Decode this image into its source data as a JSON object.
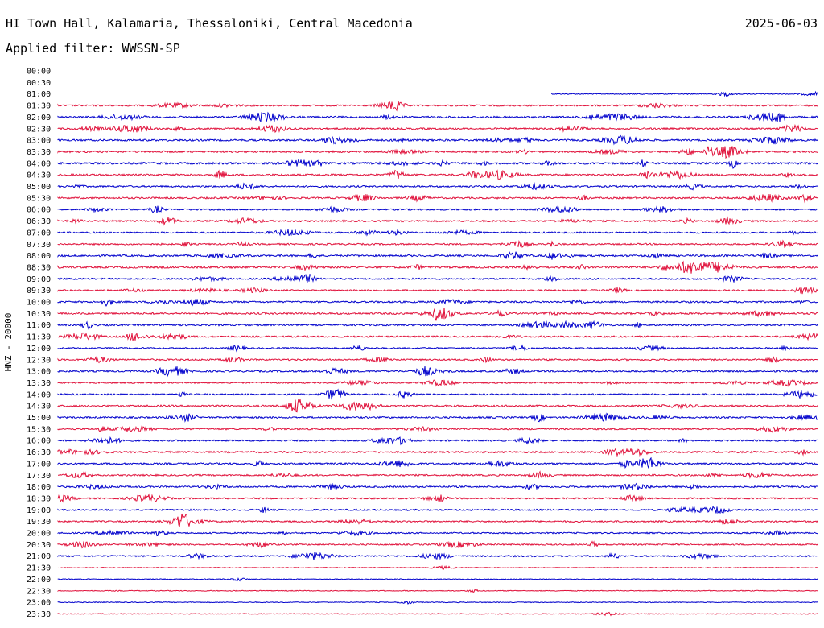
{
  "header": {
    "title": "HI Town Hall, Kalamaria, Thessaloniki, Central Macedonia",
    "filter_text": "Applied filter: WWSSN-SP",
    "date": "2025-06-03"
  },
  "chart_data": {
    "type": "line",
    "ylabel": "HNZ - 20000",
    "series_colors": [
      "#0000cc",
      "#e0103a"
    ],
    "time_labels": [
      "00:00",
      "00:30",
      "01:00",
      "01:30",
      "02:00",
      "02:30",
      "03:00",
      "03:30",
      "04:00",
      "04:30",
      "05:00",
      "05:30",
      "06:00",
      "06:30",
      "07:00",
      "07:30",
      "08:00",
      "08:30",
      "09:00",
      "09:30",
      "10:00",
      "10:30",
      "11:00",
      "11:30",
      "12:00",
      "12:30",
      "13:00",
      "13:30",
      "14:00",
      "14:30",
      "15:00",
      "15:30",
      "16:00",
      "16:30",
      "17:00",
      "17:30",
      "18:00",
      "18:30",
      "19:00",
      "19:30",
      "20:00",
      "20:30",
      "21:00",
      "21:30",
      "22:00",
      "22:30",
      "23:00",
      "23:30"
    ],
    "trace_start_fraction": [
      null,
      null,
      0.65,
      0,
      0,
      0,
      0,
      0,
      0,
      0,
      0,
      0,
      0,
      0,
      0,
      0,
      0,
      0,
      0,
      0,
      0,
      0,
      0,
      0,
      0,
      0,
      0,
      0,
      0,
      0,
      0,
      0,
      0,
      0,
      0,
      0,
      0,
      0,
      0,
      0,
      0,
      0,
      0,
      0,
      0,
      0,
      0,
      0
    ],
    "activity_level": [
      0,
      0,
      0.2,
      0.6,
      0.8,
      0.7,
      0.8,
      0.8,
      0.9,
      0.8,
      0.7,
      0.7,
      0.6,
      0.7,
      0.6,
      0.6,
      0.8,
      0.9,
      0.6,
      0.6,
      0.7,
      0.8,
      0.7,
      0.7,
      0.5,
      0.6,
      0.7,
      0.5,
      0.6,
      0.7,
      0.7,
      0.6,
      0.6,
      0.7,
      0.7,
      0.6,
      0.7,
      0.6,
      0.6,
      0.6,
      0.5,
      0.5,
      0.6,
      0.1,
      0.1,
      0.1,
      0.1,
      0.15
    ]
  }
}
